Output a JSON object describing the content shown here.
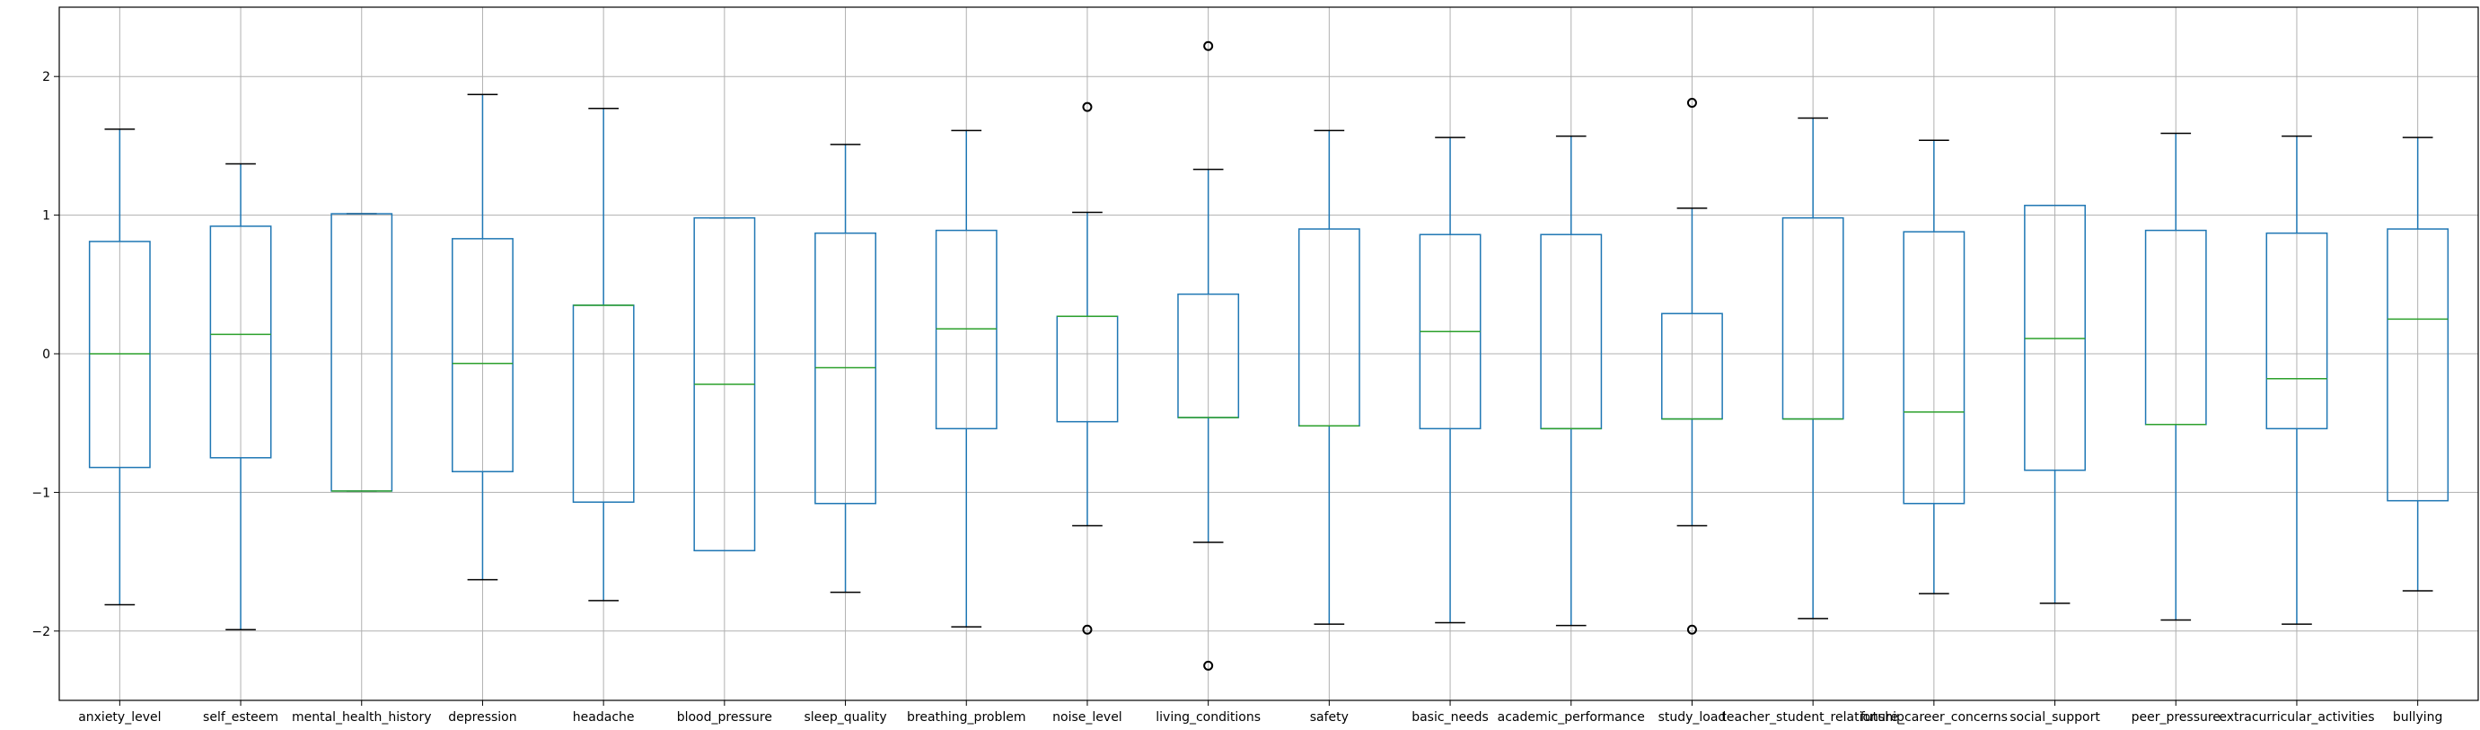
{
  "chart_data": {
    "type": "boxplot",
    "title": "",
    "xlabel": "",
    "ylabel": "",
    "ylim": [
      -2.5,
      2.5
    ],
    "yticks": [
      2,
      1,
      0,
      -1,
      -2
    ],
    "ytick_labels": [
      "2",
      "1",
      "0",
      "−1",
      "−2"
    ],
    "grid": true,
    "colors": {
      "box": "#1f77b4",
      "median": "#2ca02c",
      "whisker_cap": "#000000",
      "outlier": "#000000",
      "grid": "#b0b0b0"
    },
    "categories": [
      "anxiety_level",
      "self_esteem",
      "mental_health_history",
      "depression",
      "headache",
      "blood_pressure",
      "sleep_quality",
      "breathing_problem",
      "noise_level",
      "living_conditions",
      "safety",
      "basic_needs",
      "academic_performance",
      "study_load",
      "teacher_student_relationship",
      "future_career_concerns",
      "social_support",
      "peer_pressure",
      "extracurricular_activities",
      "bullying"
    ],
    "boxes": [
      {
        "whislo": -1.81,
        "q1": -0.82,
        "med": 0.0,
        "q3": 0.81,
        "whishi": 1.62,
        "fliers": []
      },
      {
        "whislo": -1.99,
        "q1": -0.75,
        "med": 0.14,
        "q3": 0.92,
        "whishi": 1.37,
        "fliers": []
      },
      {
        "whislo": -0.99,
        "q1": -0.99,
        "med": -0.99,
        "q3": 1.01,
        "whishi": 1.01,
        "fliers": []
      },
      {
        "whislo": -1.63,
        "q1": -0.85,
        "med": -0.07,
        "q3": 0.83,
        "whishi": 1.87,
        "fliers": []
      },
      {
        "whislo": -1.78,
        "q1": -1.07,
        "med": 0.35,
        "q3": 0.35,
        "whishi": 1.77,
        "fliers": []
      },
      {
        "whislo": -1.42,
        "q1": -1.42,
        "med": -0.22,
        "q3": 0.98,
        "whishi": 0.98,
        "fliers": []
      },
      {
        "whislo": -1.72,
        "q1": -1.08,
        "med": -0.1,
        "q3": 0.87,
        "whishi": 1.51,
        "fliers": []
      },
      {
        "whislo": -1.97,
        "q1": -0.54,
        "med": 0.18,
        "q3": 0.89,
        "whishi": 1.61,
        "fliers": []
      },
      {
        "whislo": -1.24,
        "q1": -0.49,
        "med": 0.27,
        "q3": 0.27,
        "whishi": 1.02,
        "fliers": [
          1.78,
          -1.99
        ]
      },
      {
        "whislo": -1.36,
        "q1": -0.46,
        "med": -0.46,
        "q3": 0.43,
        "whishi": 1.33,
        "fliers": [
          2.22,
          -2.25
        ]
      },
      {
        "whislo": -1.95,
        "q1": -0.52,
        "med": -0.52,
        "q3": 0.9,
        "whishi": 1.61,
        "fliers": []
      },
      {
        "whislo": -1.94,
        "q1": -0.54,
        "med": 0.16,
        "q3": 0.86,
        "whishi": 1.56,
        "fliers": []
      },
      {
        "whislo": -1.96,
        "q1": -0.54,
        "med": -0.54,
        "q3": 0.86,
        "whishi": 1.57,
        "fliers": []
      },
      {
        "whislo": -1.24,
        "q1": -0.47,
        "med": -0.47,
        "q3": 0.29,
        "whishi": 1.05,
        "fliers": [
          1.81,
          -1.99
        ]
      },
      {
        "whislo": -1.91,
        "q1": -0.47,
        "med": -0.47,
        "q3": 0.98,
        "whishi": 1.7,
        "fliers": []
      },
      {
        "whislo": -1.73,
        "q1": -1.08,
        "med": -0.42,
        "q3": 0.88,
        "whishi": 1.54,
        "fliers": []
      },
      {
        "whislo": -1.8,
        "q1": -0.84,
        "med": 0.11,
        "q3": 1.07,
        "whishi": 1.07,
        "fliers": []
      },
      {
        "whislo": -1.92,
        "q1": -0.51,
        "med": -0.51,
        "q3": 0.89,
        "whishi": 1.59,
        "fliers": []
      },
      {
        "whislo": -1.95,
        "q1": -0.54,
        "med": -0.18,
        "q3": 0.87,
        "whishi": 1.57,
        "fliers": []
      },
      {
        "whislo": -1.71,
        "q1": -1.06,
        "med": 0.25,
        "q3": 0.9,
        "whishi": 1.56,
        "fliers": []
      }
    ]
  }
}
